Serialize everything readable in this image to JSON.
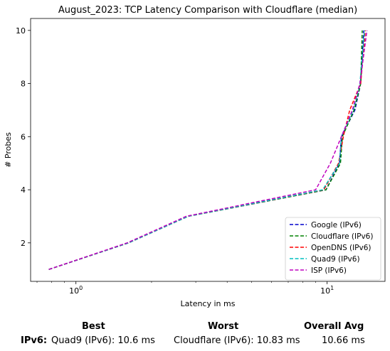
{
  "chart_data": {
    "type": "line",
    "title": "August_2023: TCP Latency Comparison with Cloudflare (median)",
    "xlabel": "Latency in ms",
    "ylabel": "# Probes",
    "xscale": "log",
    "xlim": [
      0.66,
      17.0
    ],
    "ylim": [
      0.55,
      10.45
    ],
    "x_ticks": [
      {
        "value": 1,
        "label": "10^0"
      },
      {
        "value": 10,
        "label": "10^1"
      }
    ],
    "y_ticks": [
      2,
      4,
      6,
      8,
      10
    ],
    "grid": false,
    "legend_position": "lower-right",
    "series": [
      {
        "name": "Google (IPv6)",
        "color": "#0000cc",
        "x": [
          0.78,
          1.62,
          2.8,
          9.9,
          11.2,
          11.4,
          12.9,
          13.6,
          14.0
        ],
        "y": [
          1,
          2,
          3,
          4,
          5,
          6,
          7,
          8,
          10
        ]
      },
      {
        "name": "Cloudflare (IPv6)",
        "color": "#008000",
        "x": [
          0.78,
          1.62,
          2.8,
          9.9,
          11.3,
          11.5,
          12.8,
          13.6,
          13.8
        ],
        "y": [
          1,
          2,
          3,
          4,
          5,
          6,
          7,
          8,
          10
        ]
      },
      {
        "name": "OpenDNS (IPv6)",
        "color": "#ff0000",
        "x": [
          0.78,
          1.62,
          2.8,
          9.7,
          11.1,
          11.6,
          12.3,
          13.6,
          14.2
        ],
        "y": [
          1,
          2,
          3,
          4,
          5,
          6,
          7,
          8,
          10
        ]
      },
      {
        "name": "Quad9 (IPv6)",
        "color": "#00bfbf",
        "x": [
          0.78,
          1.62,
          2.8,
          9.6,
          11.2,
          11.4,
          12.7,
          13.5,
          14.1
        ],
        "y": [
          1,
          2,
          3,
          4,
          5,
          6,
          7,
          8,
          10
        ]
      },
      {
        "name": "ISP (IPv6)",
        "color": "#bf00bf",
        "x": [
          0.78,
          1.6,
          2.75,
          9.0,
          10.3,
          11.4,
          12.6,
          13.5,
          14.4
        ],
        "y": [
          1,
          2,
          3,
          4,
          5,
          6,
          7,
          8,
          10
        ]
      }
    ]
  },
  "summary": {
    "headers": {
      "best": "Best",
      "worst": "Worst",
      "overall": "Overall Avg"
    },
    "row_label": "IPv6",
    "row_label_suffix": ":",
    "best": "Quad9 (IPv6): 10.6 ms",
    "worst": "Cloudflare (IPv6): 10.83 ms",
    "overall": "10.66 ms"
  }
}
